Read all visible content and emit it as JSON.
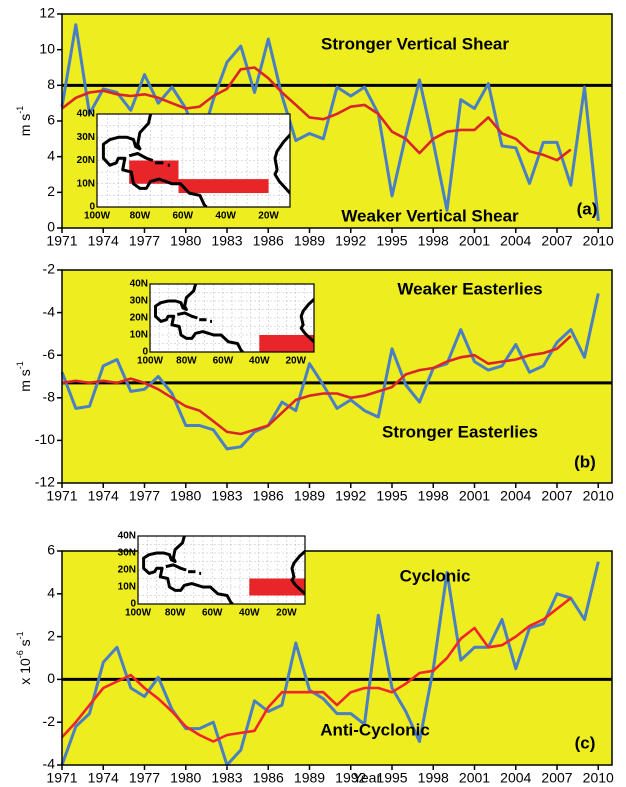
{
  "chart_data": [
    {
      "type": "line",
      "x": [
        1971,
        1972,
        1973,
        1974,
        1975,
        1976,
        1977,
        1978,
        1979,
        1980,
        1981,
        1982,
        1983,
        1984,
        1985,
        1986,
        1987,
        1988,
        1989,
        1990,
        1991,
        1992,
        1993,
        1994,
        1995,
        1996,
        1997,
        1998,
        1999,
        2000,
        2001,
        2002,
        2003,
        2004,
        2005,
        2006,
        2007,
        2008,
        2009,
        2010
      ],
      "xlim": [
        1971,
        2011
      ],
      "xticks": [
        1971,
        1974,
        1977,
        1980,
        1983,
        1986,
        1989,
        1992,
        1995,
        1998,
        2001,
        2004,
        2007,
        2010
      ],
      "ylim": [
        0,
        12
      ],
      "yticks": [
        0,
        2,
        4,
        6,
        8,
        10,
        12
      ],
      "ylabel": [
        {
          "text": "m s"
        },
        {
          "sup": "-1"
        }
      ],
      "series": [
        {
          "color": "#4a7fc4",
          "values": [
            6.8,
            11.4,
            6.4,
            7.8,
            7.6,
            6.6,
            8.6,
            7.0,
            7.9,
            6.7,
            4.6,
            7.2,
            9.3,
            10.2,
            7.6,
            10.6,
            7.4,
            4.9,
            5.3,
            5.0,
            7.9,
            7.4,
            7.9,
            6.4,
            1.8,
            5.2,
            8.3,
            4.8,
            1.0,
            7.2,
            6.7,
            8.1,
            4.6,
            4.5,
            2.5,
            4.8,
            4.8,
            2.4,
            7.9,
            0.4
          ]
        },
        {
          "color": "#d9262a",
          "values": [
            6.7,
            7.3,
            7.6,
            7.7,
            7.5,
            7.4,
            7.5,
            7.3,
            7.0,
            6.7,
            6.8,
            7.4,
            7.8,
            8.9,
            9.0,
            8.4,
            7.6,
            6.9,
            6.2,
            6.1,
            6.4,
            6.8,
            6.9,
            6.4,
            5.4,
            5.0,
            4.2,
            5.0,
            5.4,
            5.5,
            5.5,
            6.2,
            5.3,
            5.0,
            4.3,
            4.1,
            3.8,
            4.4,
            null,
            null
          ]
        }
      ],
      "reference_line": 8,
      "annotations": [
        "Stronger Vertical Shear",
        "Weaker Vertical Shear"
      ],
      "panel_label": "(a)",
      "inset": {
        "lat_labels": [
          "40N",
          "30N",
          "20N",
          "10N",
          "0"
        ],
        "lon_labels": [
          "100W",
          "80W",
          "60W",
          "40W",
          "20W"
        ]
      }
    },
    {
      "type": "line",
      "x": [
        1971,
        1972,
        1973,
        1974,
        1975,
        1976,
        1977,
        1978,
        1979,
        1980,
        1981,
        1982,
        1983,
        1984,
        1985,
        1986,
        1987,
        1988,
        1989,
        1990,
        1991,
        1992,
        1993,
        1994,
        1995,
        1996,
        1997,
        1998,
        1999,
        2000,
        2001,
        2002,
        2003,
        2004,
        2005,
        2006,
        2007,
        2008,
        2009,
        2010
      ],
      "xlim": [
        1971,
        2011
      ],
      "xticks": [
        1971,
        1974,
        1977,
        1980,
        1983,
        1986,
        1989,
        1992,
        1995,
        1998,
        2001,
        2004,
        2007,
        2010
      ],
      "ylim": [
        -12,
        -2
      ],
      "yticks": [
        -12,
        -10,
        -8,
        -6,
        -4,
        -2
      ],
      "ylabel": [
        {
          "text": "m s"
        },
        {
          "sup": "-1"
        }
      ],
      "series": [
        {
          "color": "#4a7fc4",
          "values": [
            -6.8,
            -8.5,
            -8.4,
            -6.5,
            -6.2,
            -7.7,
            -7.6,
            -7.0,
            -7.8,
            -9.3,
            -9.3,
            -9.5,
            -10.4,
            -10.3,
            -9.6,
            -9.3,
            -8.2,
            -8.6,
            -6.4,
            -7.4,
            -8.5,
            -8.1,
            -8.6,
            -8.9,
            -5.7,
            -7.4,
            -8.2,
            -6.6,
            -6.4,
            -4.8,
            -6.3,
            -6.7,
            -6.5,
            -5.5,
            -6.8,
            -6.5,
            -5.4,
            -4.8,
            -6.1,
            -3.1
          ]
        },
        {
          "color": "#d9262a",
          "values": [
            -7.3,
            -7.2,
            -7.3,
            -7.2,
            -7.3,
            -7.1,
            -7.3,
            -7.6,
            -8.0,
            -8.4,
            -8.6,
            -9.1,
            -9.6,
            -9.7,
            -9.5,
            -9.3,
            -8.7,
            -8.1,
            -7.9,
            -7.8,
            -7.8,
            -8.0,
            -7.9,
            -7.7,
            -7.5,
            -6.9,
            -6.7,
            -6.6,
            -6.3,
            -6.1,
            -6.0,
            -6.4,
            -6.3,
            -6.2,
            -6.0,
            -5.9,
            -5.7,
            -5.1,
            null,
            null
          ]
        }
      ],
      "reference_line": -7.3,
      "annotations": [
        "Weaker Easterlies",
        "Stronger Easterlies"
      ],
      "panel_label": "(b)",
      "inset": {
        "lat_labels": [
          "40N",
          "30N",
          "20N",
          "10N",
          "0"
        ],
        "lon_labels": [
          "100W",
          "80W",
          "60W",
          "40W",
          "20W"
        ]
      }
    },
    {
      "type": "line",
      "x": [
        1971,
        1972,
        1973,
        1974,
        1975,
        1976,
        1977,
        1978,
        1979,
        1980,
        1981,
        1982,
        1983,
        1984,
        1985,
        1986,
        1987,
        1988,
        1989,
        1990,
        1991,
        1992,
        1993,
        1994,
        1995,
        1996,
        1997,
        1998,
        1999,
        2000,
        2001,
        2002,
        2003,
        2004,
        2005,
        2006,
        2007,
        2008,
        2009,
        2010
      ],
      "xlim": [
        1971,
        2011
      ],
      "xticks": [
        1971,
        1974,
        1977,
        1980,
        1983,
        1986,
        1989,
        1992,
        1995,
        1998,
        2001,
        2004,
        2007,
        2010
      ],
      "ylim": [
        -4,
        6
      ],
      "yticks": [
        -4,
        -2,
        0,
        2,
        4,
        6
      ],
      "ylabel": [
        {
          "text": "x 10"
        },
        {
          "sup": "-6"
        },
        {
          "text": " s"
        },
        {
          "sup": "-1"
        }
      ],
      "xlabel": "Year",
      "series": [
        {
          "color": "#4a7fc4",
          "values": [
            -4.0,
            -2.2,
            -1.6,
            0.8,
            1.5,
            -0.4,
            -0.8,
            0.1,
            -1.4,
            -2.3,
            -2.3,
            -2.0,
            -4.0,
            -3.3,
            -1.0,
            -1.5,
            -1.2,
            1.7,
            -0.5,
            -0.9,
            -1.6,
            -1.6,
            -2.1,
            3.0,
            -0.4,
            -1.5,
            -2.9,
            0.5,
            5.0,
            0.9,
            1.5,
            1.5,
            2.8,
            0.5,
            2.4,
            2.6,
            4.0,
            3.8,
            2.8,
            5.5
          ]
        },
        {
          "color": "#f0262a",
          "values": [
            -2.7,
            -2.0,
            -1.2,
            -0.4,
            -0.1,
            0.2,
            -0.4,
            -0.9,
            -1.5,
            -2.2,
            -2.6,
            -2.9,
            -2.6,
            -2.5,
            -2.4,
            -1.3,
            -0.6,
            -0.6,
            -0.6,
            -0.6,
            -1.2,
            -0.6,
            -0.4,
            -0.4,
            -0.6,
            -0.2,
            0.3,
            0.4,
            1.0,
            1.9,
            2.4,
            1.5,
            1.6,
            2.0,
            2.5,
            2.8,
            3.3,
            3.8,
            null,
            null
          ]
        }
      ],
      "reference_line": 0,
      "annotations": [
        "Cyclonic",
        "Anti-Cyclonic"
      ],
      "panel_label": "(c)",
      "inset": {
        "lat_labels": [
          "40N",
          "30N",
          "20N",
          "10N",
          "0"
        ],
        "lon_labels": [
          "100W",
          "80W",
          "60W",
          "40W",
          "20W"
        ]
      }
    }
  ]
}
